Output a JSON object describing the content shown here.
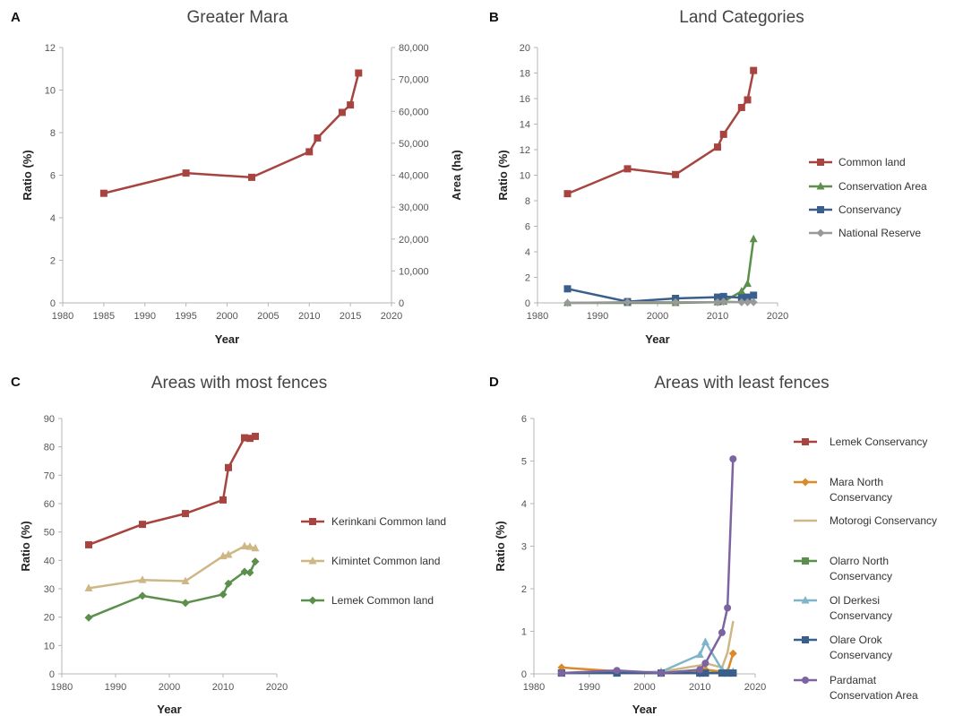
{
  "chart_data": [
    {
      "panel": "A",
      "type": "line",
      "title": "Greater Mara",
      "xlabel": "Year",
      "ylabel": "Ratio (%)",
      "y2label": "Area (ha)",
      "xlim": [
        1980,
        2020
      ],
      "xticks": [
        1980,
        1985,
        1990,
        1995,
        2000,
        2005,
        2010,
        2015,
        2020
      ],
      "ylim": [
        0,
        12
      ],
      "yticks": [
        0,
        2,
        4,
        6,
        8,
        10,
        12
      ],
      "y2lim": [
        0,
        80000
      ],
      "y2ticks": [
        "0",
        "10,000",
        "20,000",
        "30,000",
        "40,000",
        "50,000",
        "60,000",
        "70,000",
        "80,000"
      ],
      "series": [
        {
          "color": "#A84440",
          "marker": "square",
          "x": [
            1985,
            1995,
            2003,
            2010,
            2011,
            2014,
            2015,
            2016
          ],
          "values": [
            5.15,
            6.1,
            5.9,
            7.1,
            7.75,
            8.95,
            9.3,
            10.8
          ]
        }
      ]
    },
    {
      "panel": "B",
      "type": "line",
      "title": "Land Categories",
      "xlabel": "Year",
      "ylabel": "Ratio (%)",
      "xlim": [
        1980,
        2020
      ],
      "xticks": [
        1980,
        1990,
        2000,
        2010,
        2020
      ],
      "ylim": [
        0,
        20
      ],
      "yticks": [
        0,
        2,
        4,
        6,
        8,
        10,
        12,
        14,
        16,
        18,
        20
      ],
      "legend_position": "right",
      "series": [
        {
          "name": "Common land",
          "color": "#A84440",
          "marker": "square",
          "x": [
            1985,
            1995,
            2003,
            2010,
            2011,
            2014,
            2015,
            2016
          ],
          "values": [
            8.55,
            10.5,
            10.05,
            12.2,
            13.2,
            15.3,
            15.9,
            18.2
          ]
        },
        {
          "name": "Conservation Area",
          "color": "#5B8F4B",
          "marker": "triangle",
          "x": [
            1985,
            1995,
            2003,
            2010,
            2011,
            2014,
            2015,
            2016
          ],
          "values": [
            0,
            0,
            0,
            0.05,
            0.1,
            0.9,
            1.5,
            5.0
          ]
        },
        {
          "name": "Conservancy",
          "color": "#3A5F8C",
          "marker": "square",
          "x": [
            1985,
            1995,
            2003,
            2010,
            2011,
            2014,
            2015,
            2016
          ],
          "values": [
            1.1,
            0.1,
            0.35,
            0.45,
            0.5,
            0.4,
            0.45,
            0.6
          ]
        },
        {
          "name": "National Reserve",
          "color": "#999999",
          "marker": "diamond",
          "x": [
            1985,
            1995,
            2003,
            2010,
            2011,
            2014,
            2015,
            2016
          ],
          "values": [
            0,
            0.05,
            0.05,
            0.05,
            0.1,
            0.05,
            0.05,
            0.05
          ]
        }
      ]
    },
    {
      "panel": "C",
      "type": "line",
      "title": "Areas with most fences",
      "xlabel": "Year",
      "ylabel": "Ratio (%)",
      "xlim": [
        1980,
        2020
      ],
      "xticks": [
        1980,
        1990,
        2000,
        2010,
        2020
      ],
      "ylim": [
        0,
        90
      ],
      "yticks": [
        0,
        10,
        20,
        30,
        40,
        50,
        60,
        70,
        80,
        90
      ],
      "legend_position": "right",
      "series": [
        {
          "name": "Kerinkani Common land",
          "color": "#A84440",
          "marker": "square",
          "x": [
            1985,
            1995,
            2003,
            2010,
            2011,
            2014,
            2015,
            2016
          ],
          "values": [
            45.5,
            52.7,
            56.5,
            61.3,
            72.7,
            83.2,
            83.0,
            83.7
          ]
        },
        {
          "name": "Kimintet Common land",
          "color": "#CDB885",
          "marker": "triangle",
          "x": [
            1985,
            1995,
            2003,
            2010,
            2011,
            2014,
            2015,
            2016
          ],
          "values": [
            30.2,
            33.1,
            32.7,
            41.5,
            42.0,
            45.0,
            44.8,
            44.3
          ]
        },
        {
          "name": "Lemek Common land",
          "color": "#5B8F4B",
          "marker": "diamond",
          "x": [
            1985,
            1995,
            2003,
            2010,
            2011,
            2014,
            2015,
            2016
          ],
          "values": [
            19.8,
            27.5,
            25.0,
            28.0,
            31.8,
            36.0,
            35.7,
            39.6
          ]
        }
      ]
    },
    {
      "panel": "D",
      "type": "line",
      "title": "Areas with least fences",
      "xlabel": "Year",
      "ylabel": "Ratio (%)",
      "xlim": [
        1980,
        2020
      ],
      "xticks": [
        1980,
        1990,
        2000,
        2010,
        2020
      ],
      "ylim": [
        0,
        6
      ],
      "yticks": [
        0,
        1,
        2,
        3,
        4,
        5,
        6
      ],
      "legend_position": "right",
      "series": [
        {
          "name": "Lemek Conservancy",
          "color": "#A84440",
          "marker": "square",
          "x": [
            1985,
            1995,
            2003,
            2010,
            2011,
            2014,
            2015,
            2016
          ],
          "values": [
            0.02,
            0.02,
            0.02,
            0.02,
            0.02,
            0.02,
            0.02,
            0.02
          ]
        },
        {
          "name": "Mara North Conservancy",
          "color": "#D98A2B",
          "marker": "diamond",
          "x": [
            1985,
            1995,
            2003,
            2010,
            2011,
            2014,
            2015,
            2016
          ],
          "values": [
            0.15,
            0.06,
            0.02,
            0.05,
            0.1,
            0.05,
            0.05,
            0.48
          ]
        },
        {
          "name": "Motorogi Conservancy",
          "color": "#CDB885",
          "marker": "none",
          "x": [
            1985,
            1995,
            2003,
            2010,
            2011,
            2014,
            2015,
            2016
          ],
          "values": [
            0.02,
            0.02,
            0.05,
            0.2,
            0.25,
            0.15,
            0.5,
            1.22
          ]
        },
        {
          "name": "Olarro North Conservancy",
          "color": "#5B8F4B",
          "marker": "square",
          "x": [
            1985,
            1995,
            2003,
            2010,
            2011,
            2014,
            2015,
            2016
          ],
          "values": [
            0.02,
            0.02,
            0.02,
            0.02,
            0.02,
            0.02,
            0.02,
            0.02
          ]
        },
        {
          "name": "Ol Derkesi Conservancy",
          "color": "#7FB5C8",
          "marker": "triangle",
          "x": [
            1985,
            1995,
            2003,
            2010,
            2011,
            2014,
            2015,
            2016
          ],
          "values": [
            0.02,
            0.02,
            0.05,
            0.45,
            0.75,
            0.1,
            0.05,
            0.05
          ]
        },
        {
          "name": "Olare Orok Conservancy",
          "color": "#3A5F8C",
          "marker": "square",
          "x": [
            1985,
            1995,
            2003,
            2010,
            2011,
            2014,
            2015,
            2016
          ],
          "values": [
            0.02,
            0.02,
            0.02,
            0.02,
            0.02,
            0.02,
            0.02,
            0.02
          ]
        },
        {
          "name": "Pardamat Conservation Area",
          "color": "#7C64A0",
          "marker": "circle",
          "x": [
            1985,
            1995,
            2003,
            2010,
            2011,
            2014,
            2015,
            2016
          ],
          "values": [
            0.02,
            0.08,
            0.02,
            0.1,
            0.25,
            0.97,
            1.55,
            5.05
          ]
        }
      ]
    }
  ]
}
